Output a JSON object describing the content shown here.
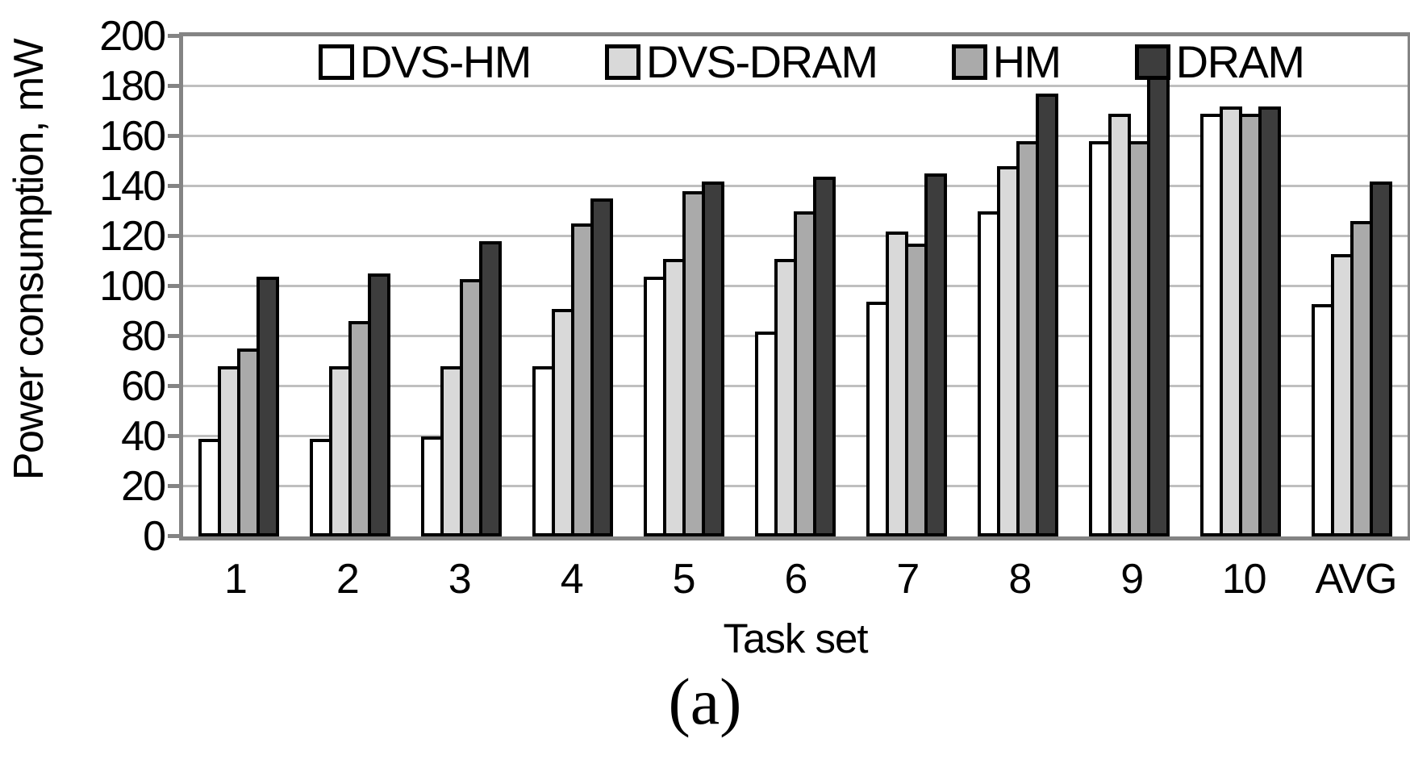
{
  "chart_data": {
    "type": "bar",
    "title": "",
    "xlabel": "Task set",
    "ylabel": "Power consumption, mW",
    "caption": "(a)",
    "ylim": [
      0,
      200
    ],
    "ytick_step": 20,
    "ytick_labels": [
      "0",
      "20",
      "40",
      "60",
      "80",
      "100",
      "120",
      "140",
      "160",
      "180",
      "200"
    ],
    "grid": true,
    "legend_position": "top-inside",
    "categories": [
      "1",
      "2",
      "3",
      "4",
      "5",
      "6",
      "7",
      "8",
      "9",
      "10",
      "AVG"
    ],
    "series": [
      {
        "name": "DVS-HM",
        "color": "#FFFFFF",
        "values": [
          39,
          39,
          40,
          68,
          104,
          82,
          94,
          130,
          158,
          169,
          93
        ]
      },
      {
        "name": "DVS-DRAM",
        "color": "#D9D9D9",
        "values": [
          68,
          68,
          68,
          91,
          111,
          111,
          122,
          148,
          169,
          172,
          113
        ]
      },
      {
        "name": "HM",
        "color": "#AAAAAA",
        "values": [
          75,
          86,
          103,
          125,
          138,
          130,
          117,
          158,
          158,
          169,
          126
        ]
      },
      {
        "name": "DRAM",
        "color": "#3D3D3D",
        "values": [
          104,
          105,
          118,
          135,
          142,
          144,
          145,
          177,
          184,
          172,
          142
        ]
      }
    ],
    "colors": {
      "background": "#FFFFFF",
      "axis": "#848484",
      "gridline": "#BFBFBF",
      "bar_border": "#000000",
      "text": "#000000"
    }
  }
}
